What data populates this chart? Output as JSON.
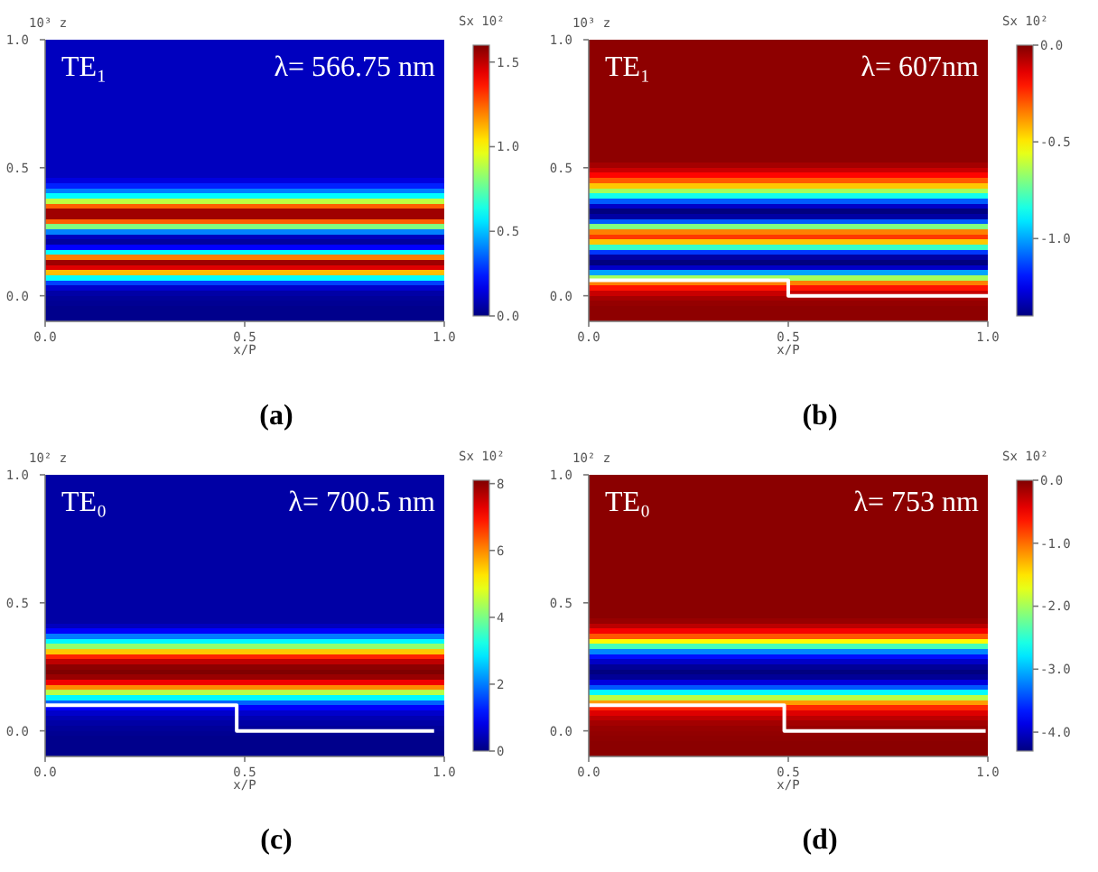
{
  "chart_data": [
    {
      "type": "heatmap",
      "title": "(a)",
      "annotations": [
        "TE₁",
        "λ= 566.75 nm"
      ],
      "xlabel": "x/P",
      "ylabel": "10³ z",
      "clabel": "Sx 10²",
      "y": [
        0.99,
        0.97,
        0.95,
        0.93,
        0.91,
        0.89,
        0.87,
        0.85,
        0.83,
        0.81,
        0.79,
        0.77,
        0.75,
        0.73,
        0.71,
        0.69,
        0.67,
        0.65,
        0.63,
        0.61,
        0.59,
        0.57,
        0.55,
        0.53,
        0.51,
        0.49,
        0.47,
        0.45,
        0.43,
        0.41,
        0.39,
        0.37,
        0.35,
        0.33,
        0.31,
        0.29,
        0.27,
        0.25,
        0.23,
        0.21,
        0.19,
        0.17,
        0.15,
        0.13,
        0.11,
        0.09,
        0.07,
        0.05,
        0.03,
        0.01,
        -0.01,
        -0.03,
        -0.05,
        -0.07,
        -0.09
      ],
      "cells": [
        [
          0.1
        ],
        [
          0.1
        ],
        [
          0.1
        ],
        [
          0.1
        ],
        [
          0.1
        ],
        [
          0.1
        ],
        [
          0.1
        ],
        [
          0.1
        ],
        [
          0.1
        ],
        [
          0.1
        ],
        [
          0.1
        ],
        [
          0.1
        ],
        [
          0.1
        ],
        [
          0.1
        ],
        [
          0.1
        ],
        [
          0.1
        ],
        [
          0.1
        ],
        [
          0.1
        ],
        [
          0.1
        ],
        [
          0.1
        ],
        [
          0.1
        ],
        [
          0.1
        ],
        [
          0.1
        ],
        [
          0.1
        ],
        [
          0.1
        ],
        [
          0.1
        ],
        [
          0.1
        ],
        [
          0.15
        ],
        [
          0.25
        ],
        [
          0.4
        ],
        [
          0.6
        ],
        [
          0.9
        ],
        [
          1.25
        ],
        [
          1.55
        ],
        [
          1.55
        ],
        [
          1.25
        ],
        [
          0.8
        ],
        [
          0.4
        ],
        [
          0.1
        ],
        [
          0.05
        ],
        [
          0.2
        ],
        [
          0.6
        ],
        [
          1.2
        ],
        [
          1.55
        ],
        [
          1.45
        ],
        [
          1.1
        ],
        [
          0.6
        ],
        [
          0.3
        ],
        [
          0.12
        ],
        [
          0.06
        ],
        [
          0.04
        ],
        [
          0.03
        ],
        [
          0.02
        ],
        [
          0.02
        ],
        [
          0.02
        ]
      ],
      "clim": [
        0,
        1.6
      ],
      "cticks": [
        {
          "value": 0,
          "label": "0.0"
        },
        {
          "value": 0.5,
          "label": "0.5"
        },
        {
          "value": 1,
          "label": "1.0"
        },
        {
          "value": 1.5,
          "label": "1.5"
        }
      ],
      "xlim": [
        0,
        1
      ],
      "xticks": [
        {
          "value": 0,
          "label": "0.0"
        },
        {
          "value": 0.5,
          "label": "0.5"
        },
        {
          "value": 1,
          "label": "1.0"
        }
      ],
      "ylim": [
        -0.1,
        1
      ],
      "yticks": [
        {
          "value": 0,
          "label": "0.0"
        },
        {
          "value": 0.5,
          "label": "0.5"
        },
        {
          "value": 1,
          "label": "1.0"
        }
      ]
    },
    {
      "type": "heatmap",
      "title": "(b)",
      "annotations": [
        "TE₁",
        "λ= 607nm"
      ],
      "xlabel": "x/P",
      "ylabel": "10³ z",
      "clabel": "Sx 10²",
      "y": [
        0.99,
        0.97,
        0.95,
        0.93,
        0.91,
        0.89,
        0.87,
        0.85,
        0.83,
        0.81,
        0.79,
        0.77,
        0.75,
        0.73,
        0.71,
        0.69,
        0.67,
        0.65,
        0.63,
        0.61,
        0.59,
        0.57,
        0.55,
        0.53,
        0.51,
        0.49,
        0.47,
        0.45,
        0.43,
        0.41,
        0.39,
        0.37,
        0.35,
        0.33,
        0.31,
        0.29,
        0.27,
        0.25,
        0.23,
        0.21,
        0.19,
        0.17,
        0.15,
        0.13,
        0.11,
        0.09,
        0.07,
        0.05,
        0.03,
        0.01,
        -0.01,
        -0.03,
        -0.05,
        -0.07,
        -0.09
      ],
      "cells": [
        [
          -0.02
        ],
        [
          -0.02
        ],
        [
          -0.02
        ],
        [
          -0.02
        ],
        [
          -0.02
        ],
        [
          -0.02
        ],
        [
          -0.02
        ],
        [
          -0.02
        ],
        [
          -0.02
        ],
        [
          -0.02
        ],
        [
          -0.02
        ],
        [
          -0.02
        ],
        [
          -0.02
        ],
        [
          -0.02
        ],
        [
          -0.02
        ],
        [
          -0.02
        ],
        [
          -0.02
        ],
        [
          -0.02
        ],
        [
          -0.02
        ],
        [
          -0.02
        ],
        [
          -0.02
        ],
        [
          -0.02
        ],
        [
          -0.02
        ],
        [
          -0.02
        ],
        [
          -0.05
        ],
        [
          -0.1
        ],
        [
          -0.18
        ],
        [
          -0.3
        ],
        [
          -0.45
        ],
        [
          -0.65
        ],
        [
          -0.85
        ],
        [
          -1.1
        ],
        [
          -1.3
        ],
        [
          -1.4
        ],
        [
          -1.35
        ],
        [
          -1.1
        ],
        [
          -0.7
        ],
        [
          -0.35
        ],
        [
          -0.25
        ],
        [
          -0.45
        ],
        [
          -0.8
        ],
        [
          -1.15
        ],
        [
          -1.35
        ],
        [
          -1.4
        ],
        [
          -1.3
        ],
        [
          -1.0
        ],
        [
          -0.65
        ],
        [
          -0.35
        ],
        [
          -0.2
        ],
        [
          -0.1
        ],
        [
          -0.05
        ],
        [
          -0.03
        ],
        [
          -0.02
        ],
        [
          -0.02
        ],
        [
          -0.02
        ]
      ],
      "clim": [
        -1.4,
        0
      ],
      "cticks": [
        {
          "value": 0,
          "label": "0.0"
        },
        {
          "value": -0.5,
          "label": "-0.5"
        },
        {
          "value": -1,
          "label": "-1.0"
        }
      ],
      "xlim": [
        0,
        1
      ],
      "xticks": [
        {
          "value": 0,
          "label": "0.0"
        },
        {
          "value": 0.5,
          "label": "0.5"
        },
        {
          "value": 1,
          "label": "1.0"
        }
      ],
      "ylim": [
        -0.1,
        1
      ],
      "yticks": [
        {
          "value": 0,
          "label": "0.0"
        },
        {
          "value": 0.5,
          "label": "0.5"
        },
        {
          "value": 1,
          "label": "1.0"
        }
      ],
      "series": [
        {
          "type": "line",
          "color": "#ffffff",
          "x": [
            0,
            0.5,
            0.5,
            1
          ],
          "values": [
            0.06,
            0.06,
            0,
            0
          ]
        }
      ]
    },
    {
      "type": "heatmap",
      "title": "(c)",
      "annotations": [
        "TE₀",
        "λ= 700.5 nm"
      ],
      "xlabel": "x/P",
      "ylabel": "10² z",
      "clabel": "Sx 10²",
      "y": [
        0.99,
        0.97,
        0.95,
        0.93,
        0.91,
        0.89,
        0.87,
        0.85,
        0.83,
        0.81,
        0.79,
        0.77,
        0.75,
        0.73,
        0.71,
        0.69,
        0.67,
        0.65,
        0.63,
        0.61,
        0.59,
        0.57,
        0.55,
        0.53,
        0.51,
        0.49,
        0.47,
        0.45,
        0.43,
        0.41,
        0.39,
        0.37,
        0.35,
        0.33,
        0.31,
        0.29,
        0.27,
        0.25,
        0.23,
        0.21,
        0.19,
        0.17,
        0.15,
        0.13,
        0.11,
        0.09,
        0.07,
        0.05,
        0.03,
        0.01,
        -0.01,
        -0.03,
        -0.05,
        -0.07,
        -0.09
      ],
      "cells": [
        [
          0.3
        ],
        [
          0.3
        ],
        [
          0.3
        ],
        [
          0.3
        ],
        [
          0.3
        ],
        [
          0.3
        ],
        [
          0.3
        ],
        [
          0.3
        ],
        [
          0.3
        ],
        [
          0.3
        ],
        [
          0.3
        ],
        [
          0.3
        ],
        [
          0.3
        ],
        [
          0.3
        ],
        [
          0.3
        ],
        [
          0.3
        ],
        [
          0.3
        ],
        [
          0.3
        ],
        [
          0.3
        ],
        [
          0.3
        ],
        [
          0.3
        ],
        [
          0.3
        ],
        [
          0.3
        ],
        [
          0.3
        ],
        [
          0.3
        ],
        [
          0.3
        ],
        [
          0.3
        ],
        [
          0.3
        ],
        [
          0.3
        ],
        [
          0.5
        ],
        [
          1.0
        ],
        [
          2.0
        ],
        [
          3.0
        ],
        [
          4.2
        ],
        [
          5.5
        ],
        [
          6.8
        ],
        [
          7.6
        ],
        [
          8.0
        ],
        [
          8.1
        ],
        [
          7.9
        ],
        [
          7.2
        ],
        [
          6.0
        ],
        [
          4.5
        ],
        [
          3.0
        ],
        [
          1.8
        ],
        [
          1.0
        ],
        [
          0.6
        ],
        [
          0.4
        ],
        [
          0.3
        ],
        [
          0.2
        ],
        [
          0.15
        ],
        [
          0.1
        ],
        [
          0.1
        ],
        [
          0.1
        ],
        [
          0.1
        ]
      ],
      "clim": [
        0,
        8.1
      ],
      "cticks": [
        0,
        2,
        4,
        6,
        8
      ],
      "xlim": [
        0,
        1
      ],
      "xticks": [
        {
          "value": 0,
          "label": "0.0"
        },
        {
          "value": 0.5,
          "label": "0.5"
        },
        {
          "value": 1,
          "label": "1.0"
        }
      ],
      "ylim": [
        -0.1,
        1
      ],
      "yticks": [
        {
          "value": 0,
          "label": "0.0"
        },
        {
          "value": 0.5,
          "label": "0.5"
        },
        {
          "value": 1,
          "label": "1.0"
        }
      ],
      "series": [
        {
          "type": "line",
          "color": "#ffffff",
          "x": [
            0,
            0.48,
            0.48,
            0.97
          ],
          "values": [
            0.1,
            0.1,
            0,
            0
          ]
        }
      ]
    },
    {
      "type": "heatmap",
      "title": "(d)",
      "annotations": [
        "TE₀",
        "λ= 753 nm"
      ],
      "xlabel": "x/P",
      "ylabel": "10² z",
      "clabel": "Sx 10²",
      "y": [
        0.99,
        0.97,
        0.95,
        0.93,
        0.91,
        0.89,
        0.87,
        0.85,
        0.83,
        0.81,
        0.79,
        0.77,
        0.75,
        0.73,
        0.71,
        0.69,
        0.67,
        0.65,
        0.63,
        0.61,
        0.59,
        0.57,
        0.55,
        0.53,
        0.51,
        0.49,
        0.47,
        0.45,
        0.43,
        0.41,
        0.39,
        0.37,
        0.35,
        0.33,
        0.31,
        0.29,
        0.27,
        0.25,
        0.23,
        0.21,
        0.19,
        0.17,
        0.15,
        0.13,
        0.11,
        0.09,
        0.07,
        0.05,
        0.03,
        0.01,
        -0.01,
        -0.03,
        -0.05,
        -0.07,
        -0.09
      ],
      "cells": [
        [
          -0.05
        ],
        [
          -0.05
        ],
        [
          -0.05
        ],
        [
          -0.05
        ],
        [
          -0.05
        ],
        [
          -0.05
        ],
        [
          -0.05
        ],
        [
          -0.05
        ],
        [
          -0.05
        ],
        [
          -0.05
        ],
        [
          -0.05
        ],
        [
          -0.05
        ],
        [
          -0.05
        ],
        [
          -0.05
        ],
        [
          -0.05
        ],
        [
          -0.05
        ],
        [
          -0.05
        ],
        [
          -0.05
        ],
        [
          -0.05
        ],
        [
          -0.05
        ],
        [
          -0.05
        ],
        [
          -0.05
        ],
        [
          -0.05
        ],
        [
          -0.05
        ],
        [
          -0.05
        ],
        [
          -0.05
        ],
        [
          -0.05
        ],
        [
          -0.05
        ],
        [
          -0.1
        ],
        [
          -0.25
        ],
        [
          -0.5
        ],
        [
          -0.9
        ],
        [
          -1.6
        ],
        [
          -2.4
        ],
        [
          -3.2
        ],
        [
          -3.7
        ],
        [
          -4.0
        ],
        [
          -4.2
        ],
        [
          -4.3
        ],
        [
          -4.2
        ],
        [
          -3.9
        ],
        [
          -3.4
        ],
        [
          -2.7
        ],
        [
          -1.9
        ],
        [
          -1.2
        ],
        [
          -0.7
        ],
        [
          -0.4
        ],
        [
          -0.25
        ],
        [
          -0.15
        ],
        [
          -0.1
        ],
        [
          -0.08
        ],
        [
          -0.06
        ],
        [
          -0.05
        ],
        [
          -0.05
        ],
        [
          -0.05
        ]
      ],
      "clim": [
        -4.3,
        0
      ],
      "cticks": [
        {
          "value": 0,
          "label": "0.0"
        },
        {
          "value": -1,
          "label": "-1.0"
        },
        {
          "value": -2,
          "label": "-2.0"
        },
        {
          "value": -3,
          "label": "-3.0"
        },
        {
          "value": -4,
          "label": "-4.0"
        }
      ],
      "xlim": [
        0,
        1
      ],
      "xticks": [
        {
          "value": 0,
          "label": "0.0"
        },
        {
          "value": 0.5,
          "label": "0.5"
        },
        {
          "value": 1,
          "label": "1.0"
        }
      ],
      "ylim": [
        -0.1,
        1
      ],
      "yticks": [
        {
          "value": 0,
          "label": "0.0"
        },
        {
          "value": 0.5,
          "label": "0.5"
        },
        {
          "value": 1,
          "label": "1.0"
        }
      ],
      "series": [
        {
          "type": "line",
          "color": "#ffffff",
          "x": [
            0,
            0.49,
            0.49,
            0.99
          ],
          "values": [
            0.1,
            0.1,
            0,
            0
          ]
        }
      ]
    }
  ]
}
